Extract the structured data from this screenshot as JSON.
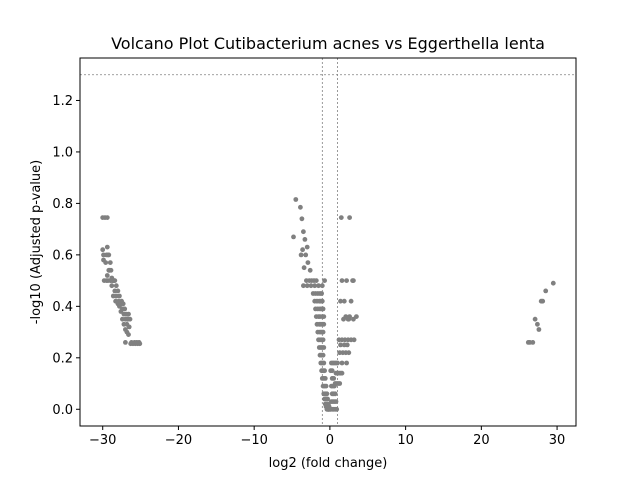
{
  "chart_data": {
    "type": "scatter",
    "title": "Volcano Plot Cutibacterium acnes vs Eggerthella lenta",
    "xlabel": "log2 (fold change)",
    "ylabel": "-log10 (Adjusted p-value)",
    "xlim": [
      -33.0,
      32.5
    ],
    "ylim": [
      -0.065,
      1.365
    ],
    "xticks": [
      -30,
      -20,
      -10,
      0,
      10,
      20,
      30
    ],
    "xtick_labels": [
      "−30",
      "−20",
      "−10",
      "0",
      "10",
      "20",
      "30"
    ],
    "yticks": [
      0.0,
      0.2,
      0.4,
      0.6,
      0.8,
      1.0,
      1.2
    ],
    "ytick_labels": [
      "0.0",
      "0.2",
      "0.4",
      "0.6",
      "0.8",
      "1.0",
      "1.2"
    ],
    "threshold_lines": {
      "horizontal_y": 1.3,
      "vertical_x": [
        -1,
        1
      ]
    },
    "grid": false,
    "legend": "none",
    "colors": {
      "points": "#808080",
      "threshold_lines": "#808080",
      "axes": "#000000"
    },
    "series": [
      {
        "x": [
          -30.0,
          -29.7,
          -29.4,
          -30.0,
          -29.5,
          -29.2,
          -29.9,
          -29.3,
          -29.0,
          -29.6,
          -29.1,
          -29.4,
          -28.9,
          -29.2,
          -28.8,
          -29.5,
          -28.6,
          -29.0,
          -28.7,
          -28.4,
          -29.8,
          -29.3,
          -28.9,
          -28.5,
          -28.2,
          -28.8,
          -28.4,
          -28.0,
          -28.6,
          -28.2,
          -27.8,
          -28.3,
          -27.9,
          -27.5,
          -28.0,
          -27.6,
          -27.3,
          -27.8,
          -27.4,
          -27.1,
          -27.6,
          -27.2,
          -26.9,
          -26.6,
          -27.4,
          -27.0,
          -26.7,
          -26.4,
          -27.2,
          -26.8,
          -26.5,
          -27.0,
          -26.8,
          -26.6,
          -27.0,
          -26.3,
          -26.0,
          -25.7,
          -25.4,
          -25.1,
          -26.2,
          -25.8,
          -25.5,
          -25.2,
          -26.7,
          -29.4,
          -28.6,
          -29.9,
          -4.5,
          -3.9,
          -3.7,
          -4.8,
          -3.5,
          -3.3,
          -3.6,
          -3.0,
          -3.8,
          -3.2,
          -3.4,
          -2.9,
          -2.6,
          -3.1,
          -2.7,
          -2.4,
          -2.1,
          -1.8,
          -3.5,
          -3.0,
          -2.5,
          -2.0,
          -1.5,
          -1.0,
          -0.7,
          -2.2,
          -1.9,
          -1.6,
          -1.3,
          -1.1,
          -2.0,
          -1.7,
          -1.4,
          -1.2,
          -1.0,
          -1.9,
          -1.6,
          -1.3,
          -1.1,
          -0.9,
          -1.8,
          -1.5,
          -1.3,
          -1.0,
          -0.8,
          -1.7,
          -1.4,
          -1.2,
          -1.0,
          -0.8,
          -1.6,
          -1.3,
          -1.1,
          -0.9,
          -1.5,
          -1.3,
          -1.1,
          -0.9,
          -1.4,
          -1.2,
          -1.0,
          -0.8,
          -1.3,
          -1.1,
          -0.9,
          -1.2,
          -1.0,
          -0.8,
          -1.1,
          -0.9,
          -0.7,
          -1.0,
          -0.8,
          -0.6,
          -0.9,
          -0.7,
          -0.5,
          -0.8,
          -0.6,
          -0.4,
          -0.7,
          -0.5,
          -0.3,
          -0.6,
          -0.4,
          -0.2,
          -0.5,
          -0.3,
          -0.1,
          -0.4,
          -0.2,
          0.0,
          -0.3,
          -0.1,
          -0.2,
          0.1,
          0.3,
          0.5,
          0.7,
          0.9,
          0.2,
          0.4,
          0.6,
          0.8,
          0.3,
          0.5,
          0.7,
          0.2,
          0.4,
          0.6,
          0.3,
          0.5,
          0.1,
          0.3,
          0.2,
          0.4,
          0.6,
          0.8,
          1.0,
          0.7,
          0.9,
          1.1,
          1.3,
          0.8,
          1.0,
          1.2,
          1.4,
          1.6,
          1.5,
          2.6,
          1.6,
          2.2,
          3.1,
          1.4,
          1.9,
          2.8,
          2.1,
          2.6,
          3.5,
          3.0,
          1.2,
          1.6,
          2.0,
          2.4,
          2.8,
          3.2,
          2.5,
          3.1,
          1.8,
          2.4,
          1.4,
          1.9,
          2.3,
          1.3,
          1.7,
          2.1,
          2.5,
          1.6,
          2.2,
          26.2,
          26.8,
          27.1,
          27.4,
          27.6,
          27.9,
          28.1,
          28.5,
          29.5,
          26.4
        ],
        "y": [
          0.745,
          0.745,
          0.745,
          0.62,
          0.6,
          0.6,
          0.6,
          0.6,
          0.57,
          0.57,
          0.54,
          0.63,
          0.54,
          0.54,
          0.51,
          0.5,
          0.5,
          0.5,
          0.5,
          0.5,
          0.5,
          0.5,
          0.5,
          0.5,
          0.48,
          0.48,
          0.46,
          0.46,
          0.44,
          0.44,
          0.44,
          0.42,
          0.42,
          0.42,
          0.41,
          0.41,
          0.41,
          0.4,
          0.39,
          0.39,
          0.38,
          0.37,
          0.37,
          0.37,
          0.35,
          0.35,
          0.35,
          0.35,
          0.33,
          0.33,
          0.32,
          0.31,
          0.3,
          0.29,
          0.26,
          0.255,
          0.255,
          0.255,
          0.255,
          0.255,
          0.26,
          0.26,
          0.26,
          0.26,
          0.35,
          0.52,
          0.5,
          0.58,
          0.815,
          0.785,
          0.74,
          0.67,
          0.69,
          0.66,
          0.62,
          0.63,
          0.6,
          0.6,
          0.55,
          0.57,
          0.54,
          0.5,
          0.5,
          0.5,
          0.5,
          0.5,
          0.48,
          0.48,
          0.48,
          0.48,
          0.48,
          0.48,
          0.5,
          0.45,
          0.45,
          0.45,
          0.45,
          0.45,
          0.42,
          0.42,
          0.42,
          0.42,
          0.42,
          0.39,
          0.39,
          0.39,
          0.39,
          0.39,
          0.36,
          0.36,
          0.36,
          0.36,
          0.36,
          0.33,
          0.33,
          0.33,
          0.33,
          0.33,
          0.3,
          0.3,
          0.3,
          0.3,
          0.27,
          0.27,
          0.27,
          0.27,
          0.24,
          0.24,
          0.24,
          0.24,
          0.21,
          0.21,
          0.21,
          0.18,
          0.18,
          0.18,
          0.15,
          0.15,
          0.15,
          0.12,
          0.12,
          0.12,
          0.09,
          0.09,
          0.09,
          0.06,
          0.06,
          0.06,
          0.04,
          0.04,
          0.04,
          0.02,
          0.02,
          0.02,
          0.01,
          0.01,
          0.01,
          0.0,
          0.0,
          0.0,
          0.0,
          0.0,
          0.0,
          0.0,
          0.0,
          0.0,
          0.0,
          0.0,
          0.03,
          0.03,
          0.03,
          0.03,
          0.06,
          0.06,
          0.06,
          0.09,
          0.09,
          0.09,
          0.12,
          0.12,
          0.15,
          0.15,
          0.18,
          0.18,
          0.18,
          0.18,
          0.18,
          0.1,
          0.1,
          0.1,
          0.1,
          0.14,
          0.14,
          0.14,
          0.14,
          0.14,
          0.745,
          0.745,
          0.5,
          0.5,
          0.5,
          0.42,
          0.42,
          0.42,
          0.36,
          0.36,
          0.36,
          0.5,
          0.27,
          0.27,
          0.27,
          0.27,
          0.27,
          0.27,
          0.35,
          0.35,
          0.35,
          0.35,
          0.25,
          0.25,
          0.25,
          0.22,
          0.22,
          0.22,
          0.22,
          0.18,
          0.18,
          0.26,
          0.26,
          0.35,
          0.33,
          0.31,
          0.42,
          0.42,
          0.46,
          0.49,
          0.26
        ]
      }
    ]
  }
}
